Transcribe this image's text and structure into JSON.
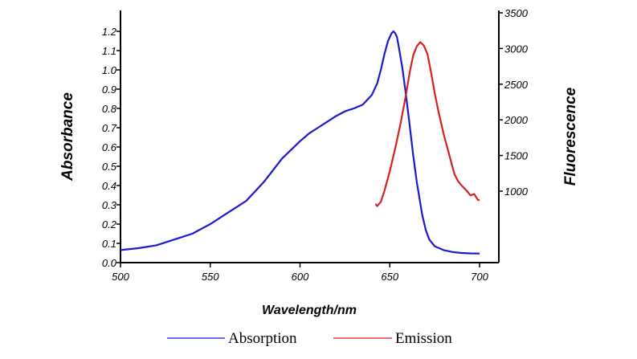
{
  "chart_data": {
    "type": "line",
    "title": "",
    "xlabel": "Wavelength/nm",
    "ylabel_left": "Absorbance",
    "ylabel_right": "Fluorescence",
    "xlim": [
      500,
      710
    ],
    "ylim_left": [
      0.0,
      1.3
    ],
    "ylim_right": [
      0,
      3500
    ],
    "x_ticks": [
      500,
      550,
      600,
      650,
      700
    ],
    "y_left_ticks": [
      0.0,
      0.1,
      0.2,
      0.3,
      0.4,
      0.5,
      0.6,
      0.7,
      0.8,
      0.9,
      1.0,
      1.1,
      1.2
    ],
    "y_left_tick_labels": [
      "0.0",
      "0.1",
      "0.2",
      "0.3",
      "0.4",
      "0.5",
      "0.6",
      "0.7",
      "0.8",
      "0.9",
      "1.0",
      "1.1",
      "1.2"
    ],
    "y_right_ticks": [
      1000,
      1500,
      2000,
      2500,
      3000,
      3500
    ],
    "legend_position": "bottom",
    "grid": false,
    "series": [
      {
        "name": "Absorption",
        "axis": "left",
        "color": "#1a1acc",
        "x": [
          500,
          510,
          520,
          530,
          540,
          550,
          560,
          570,
          580,
          590,
          600,
          605,
          610,
          615,
          620,
          625,
          630,
          635,
          640,
          643,
          645,
          647,
          649,
          651,
          652,
          653,
          654,
          655,
          657,
          659,
          661,
          663,
          665,
          668,
          670,
          672,
          675,
          680,
          685,
          690,
          695,
          700
        ],
        "values": [
          0.065,
          0.075,
          0.09,
          0.12,
          0.15,
          0.2,
          0.26,
          0.32,
          0.42,
          0.54,
          0.63,
          0.67,
          0.7,
          0.73,
          0.76,
          0.785,
          0.8,
          0.82,
          0.87,
          0.93,
          1.0,
          1.08,
          1.15,
          1.19,
          1.2,
          1.19,
          1.17,
          1.12,
          1.01,
          0.87,
          0.72,
          0.56,
          0.42,
          0.25,
          0.17,
          0.12,
          0.085,
          0.065,
          0.055,
          0.05,
          0.048,
          0.047
        ]
      },
      {
        "name": "Emission",
        "axis": "right",
        "color": "#d42020",
        "x": [
          642,
          643,
          645,
          647,
          650,
          653,
          656,
          659,
          661,
          663,
          665,
          667,
          669,
          671,
          673,
          675,
          677,
          680,
          683,
          686,
          688,
          690,
          693,
          695,
          697,
          699,
          700
        ],
        "values": [
          820,
          790,
          850,
          1000,
          1280,
          1600,
          1950,
          2350,
          2650,
          2900,
          3030,
          3090,
          3040,
          2920,
          2660,
          2380,
          2130,
          1800,
          1520,
          1240,
          1140,
          1080,
          1000,
          940,
          960,
          880,
          870
        ]
      }
    ]
  }
}
